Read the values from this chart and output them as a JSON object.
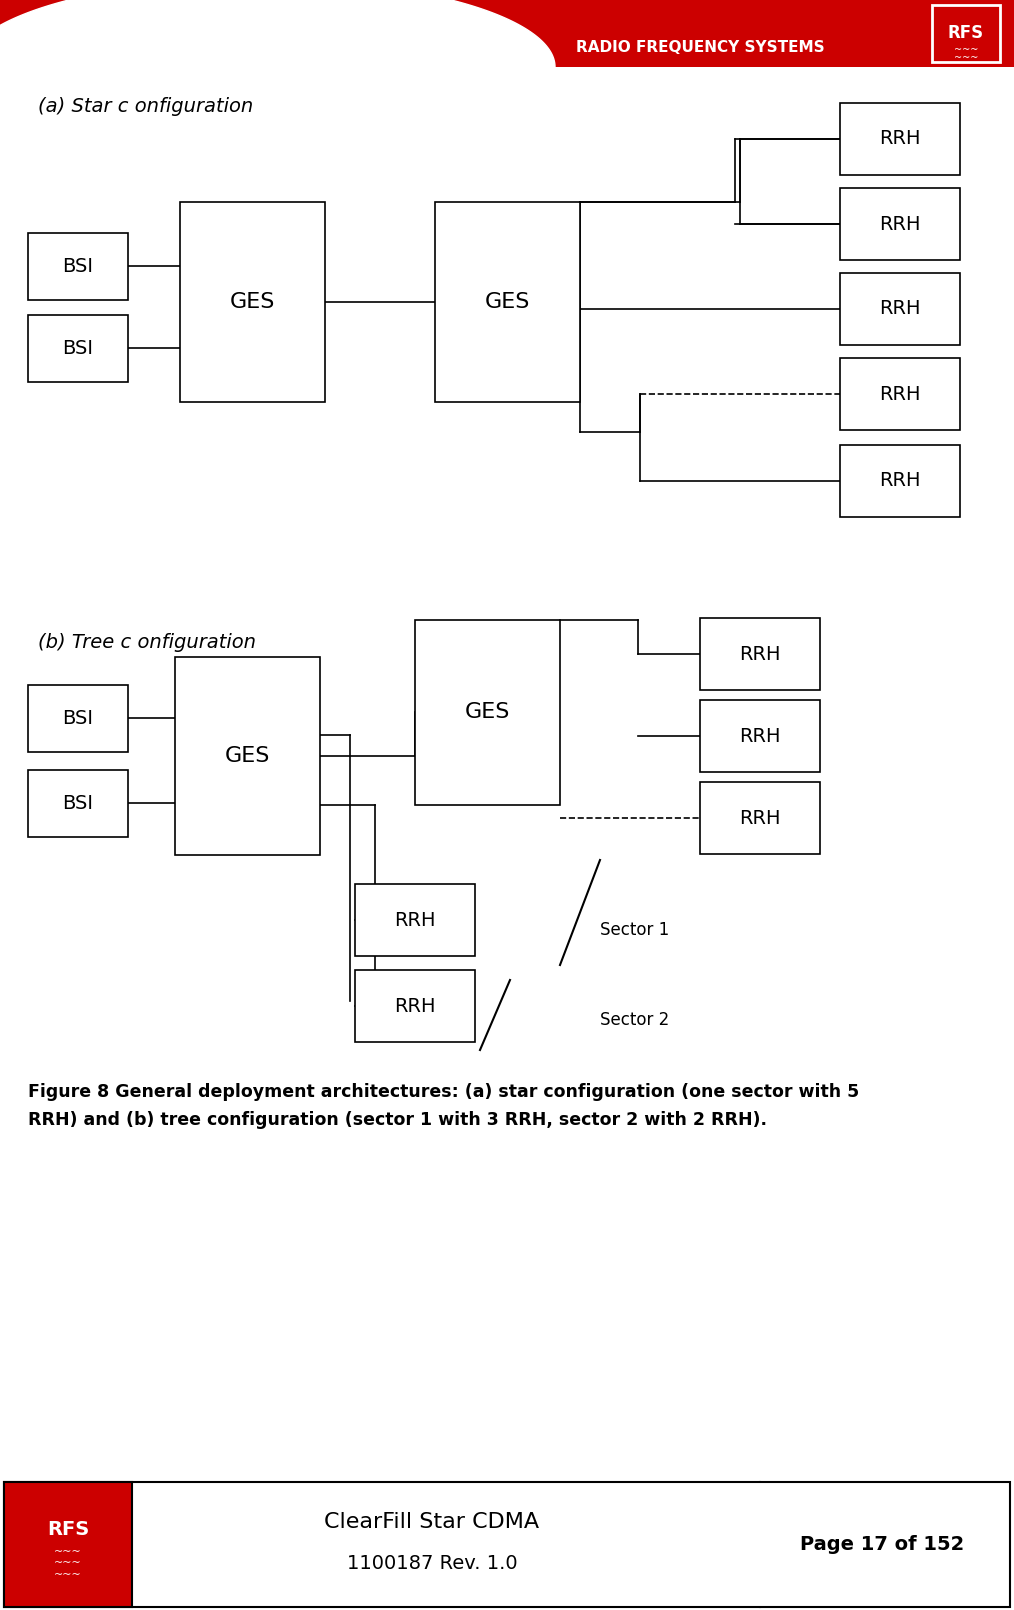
{
  "header_red": "#CC0000",
  "bg_white": "#FFFFFF",
  "rfs_text": "RFS",
  "header_title": "RADIO FREQUENCY SYSTEMS",
  "label_a": "(a) Star c onfiguration",
  "label_b": "(b) Tree c onfiguration",
  "caption_line1": "Figure 8 General deployment architectures: (a) star configuration (one sector with 5",
  "caption_line2": "RRH) and (b) tree configuration (sector 1 with 3 RRH, sector 2 with 2 RRH).",
  "footer_title": "ClearFill Star CDMA",
  "footer_sub": "1100187 Rev. 1.0",
  "footer_page": "Page 17 of 152",
  "sector1_label": "Sector 1",
  "sector2_label": "Sector 2"
}
